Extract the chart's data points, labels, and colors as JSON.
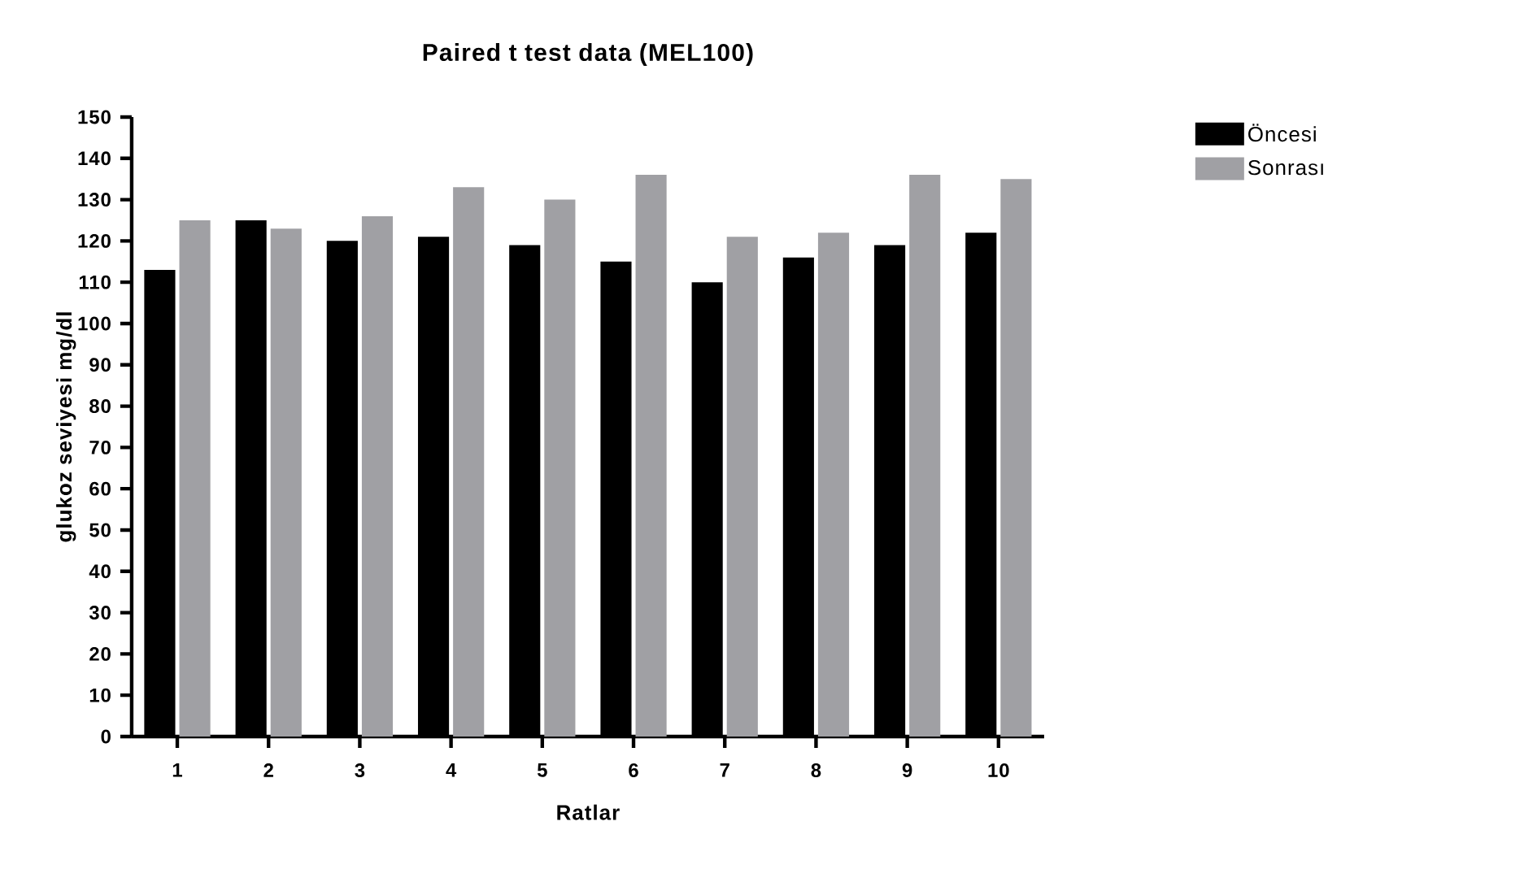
{
  "chart_data": {
    "type": "bar",
    "title": "Paired t test data (MEL100)",
    "xlabel": "Ratlar",
    "ylabel": "glukoz seviyesi mg/dl",
    "categories": [
      "1",
      "2",
      "3",
      "4",
      "5",
      "6",
      "7",
      "8",
      "9",
      "10"
    ],
    "series": [
      {
        "name": "Öncesi",
        "color": "#000000",
        "values": [
          113,
          125,
          120,
          121,
          119,
          115,
          110,
          116,
          119,
          122
        ]
      },
      {
        "name": "Sonrası",
        "color": "#a0a0a4",
        "values": [
          125,
          123,
          126,
          133,
          130,
          136,
          121,
          122,
          136,
          135
        ]
      }
    ],
    "ylim": [
      0,
      150
    ],
    "yticks": [
      0,
      10,
      20,
      30,
      40,
      50,
      60,
      70,
      80,
      90,
      100,
      110,
      120,
      130,
      140,
      150
    ],
    "legend": "top right"
  }
}
